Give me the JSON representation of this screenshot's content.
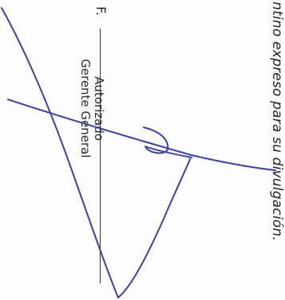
{
  "disclaimer_text": "ntino expreso para su divulgación.",
  "signature_block": {
    "prefix": "F.",
    "line1": "Autorizado",
    "line2": "Gerente General"
  },
  "colors": {
    "ink_blue": "#3b3fb8",
    "text": "#222222"
  }
}
